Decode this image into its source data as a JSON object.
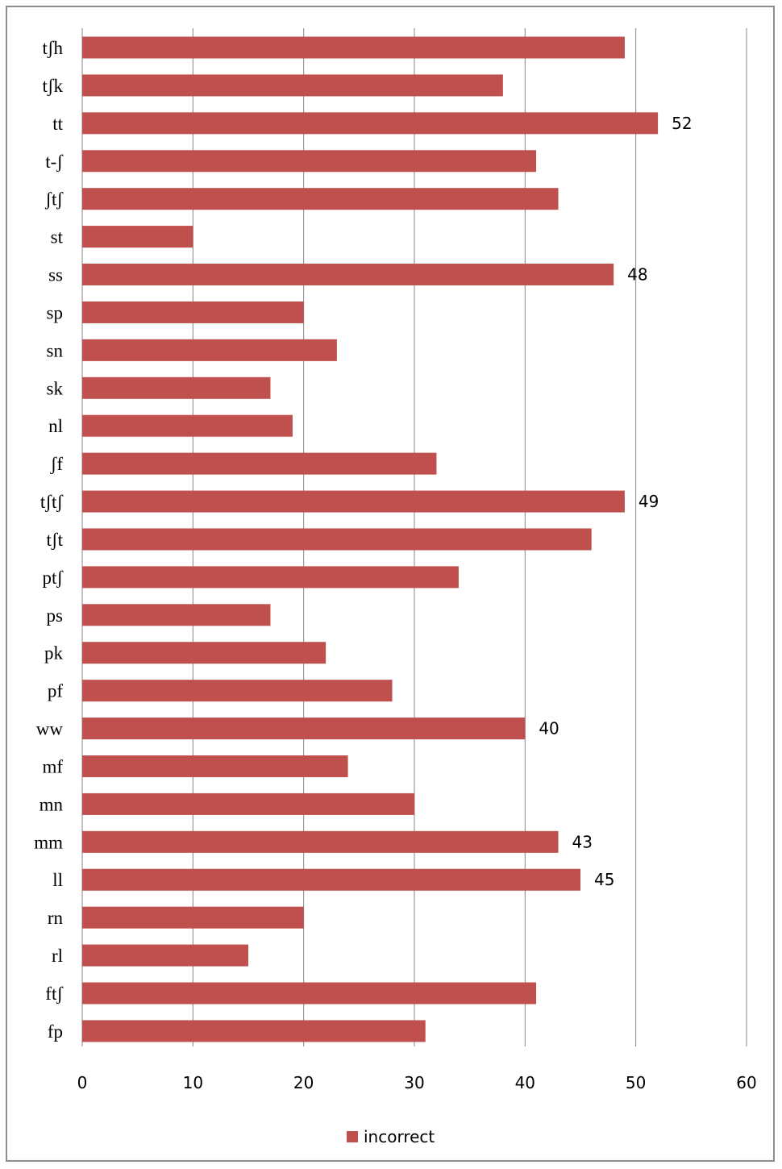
{
  "chart_data": {
    "type": "bar",
    "orientation": "horizontal",
    "categories": [
      "tʃh",
      "tʃk",
      "tt",
      "t-ʃ",
      "ʃtʃ",
      "st",
      "ss",
      "sp",
      "sn",
      "sk",
      "nl",
      "ʃf",
      "tʃtʃ",
      "tʃt",
      "ptʃ",
      "ps",
      "pk",
      "pf",
      "ww",
      "mf",
      "mn",
      "mm",
      "ll",
      "rn",
      "rl",
      "ftʃ",
      "fp"
    ],
    "series": [
      {
        "name": "incorrect",
        "color": "#c0504d",
        "values": [
          49,
          38,
          52,
          41,
          43,
          10,
          48,
          20,
          23,
          17,
          19,
          32,
          49,
          46,
          34,
          17,
          22,
          28,
          40,
          24,
          30,
          43,
          45,
          20,
          15,
          41,
          31
        ]
      }
    ],
    "data_labels": [
      {
        "category": "tt",
        "text": "52"
      },
      {
        "category": "ss",
        "text": "48"
      },
      {
        "category": "tʃtʃ",
        "text": "49"
      },
      {
        "category": "ww",
        "text": "40"
      },
      {
        "category": "mm",
        "text": "43"
      },
      {
        "category": "ll",
        "text": "45"
      }
    ],
    "x_ticks": [
      "0",
      "10",
      "20",
      "30",
      "40",
      "50",
      "60"
    ],
    "xlim": [
      0,
      60
    ],
    "grid": true,
    "legend_position": "bottom",
    "title": "",
    "xlabel": "",
    "ylabel": ""
  }
}
